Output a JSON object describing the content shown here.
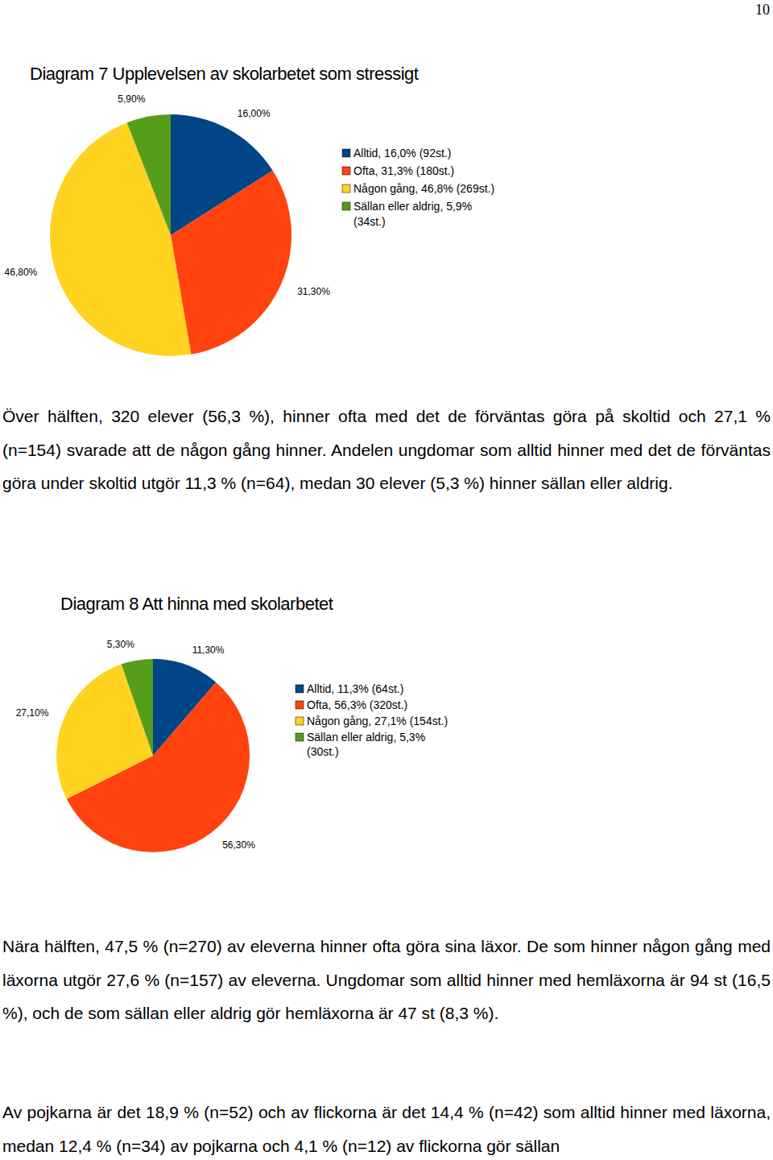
{
  "page_number": "10",
  "chart_data": [
    {
      "type": "pie",
      "title": "Diagram 7 Upplevelsen av skolarbetet som stressigt",
      "categories": [
        "Alltid, 16,0% (92st.)",
        "Ofta, 31,3% (180st.)",
        "Någon gång, 46,8% (269st.)",
        "Sällan eller aldrig, 5,9% (34st.)"
      ],
      "values": [
        16.0,
        31.3,
        46.8,
        5.9
      ],
      "value_labels": [
        "16,00%",
        "31,30%",
        "46,80%",
        "5,90%"
      ],
      "colors": [
        "#004586",
        "#ff420e",
        "#ffd320",
        "#579d1c"
      ],
      "data_labels": true,
      "legend": "right"
    },
    {
      "type": "pie",
      "title": "Diagram 8 Att hinna med skolarbetet",
      "categories": [
        "Alltid, 11,3% (64st.)",
        "Ofta, 56,3% (320st.)",
        "Någon gång, 27,1% (154st.)",
        "Sällan eller aldrig, 5,3% (30st.)"
      ],
      "values": [
        11.3,
        56.3,
        27.1,
        5.3
      ],
      "value_labels": [
        "11,30%",
        "56,30%",
        "27,10%",
        "5,30%"
      ],
      "colors": [
        "#004586",
        "#ff420e",
        "#ffd320",
        "#579d1c"
      ],
      "data_labels": true,
      "legend": "right"
    }
  ],
  "paragraphs": [
    "Över hälften, 320 elever (56,3 %), hinner ofta med det de förväntas göra på skoltid och 27,1 % (n=154) svarade att de någon gång hinner. Andelen ungdomar som alltid hinner med det de förväntas göra under skoltid utgör 11,3 % (n=64), medan 30 elever (5,3 %) hinner sällan eller aldrig.",
    "Nära hälften, 47,5 % (n=270) av eleverna hinner ofta göra sina läxor. De som hinner någon gång med läxorna utgör 27,6 % (n=157) av eleverna. Ungdomar som alltid hinner med hemläxorna är 94 st (16,5 %), och de som sällan eller aldrig gör hemläxorna är 47 st (8,3 %).",
    "Av pojkarna är det 18,9 % (n=52) och av flickorna är det 14,4 % (n=42) som alltid hinner med läxorna, medan 12,4 % (n=34) av pojkarna och 4,1 % (n=12) av flickorna gör sällan"
  ]
}
